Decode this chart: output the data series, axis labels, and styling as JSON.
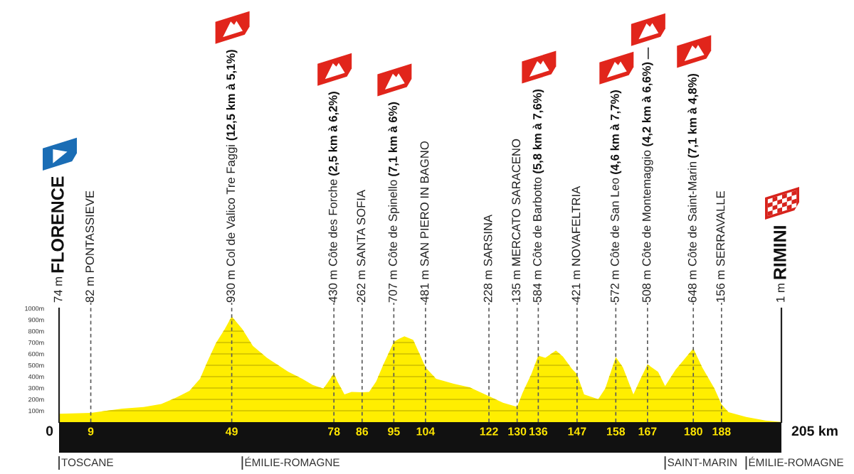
{
  "chart_data": {
    "type": "area",
    "color": "#ffee00",
    "x": [
      0,
      9,
      18,
      24,
      29,
      33,
      37,
      40,
      42,
      44.5,
      47,
      49,
      52,
      55,
      59,
      62,
      65,
      69,
      72,
      75,
      76,
      78,
      79,
      81,
      83,
      86,
      88,
      90,
      92,
      95,
      96.5,
      98,
      100.5,
      102.5,
      104,
      107,
      112,
      116.5,
      122,
      126,
      130,
      131.5,
      134,
      136,
      138,
      141,
      143,
      145.5,
      147,
      149,
      153,
      155,
      158,
      160,
      163,
      165,
      167,
      170,
      172,
      175,
      180,
      182.5,
      186,
      188,
      190,
      195,
      200.5,
      205
    ],
    "values": [
      74,
      82,
      119,
      133,
      160,
      212,
      275,
      381,
      525,
      694,
      817,
      930,
      818,
      670,
      566,
      504,
      443,
      381,
      327,
      296,
      338,
      430,
      358,
      244,
      265,
      262,
      265,
      358,
      504,
      707,
      733,
      754,
      723,
      588,
      481,
      381,
      338,
      306,
      228,
      171,
      135,
      254,
      421,
      584,
      566,
      629,
      577,
      470,
      421,
      244,
      202,
      296,
      572,
      483,
      244,
      379,
      508,
      442,
      317,
      462,
      648,
      483,
      296,
      156,
      88,
      46,
      14,
      1
    ],
    "xlim": [
      0,
      205
    ],
    "xticks": [
      9,
      49,
      78,
      86,
      95,
      104,
      122,
      130,
      136,
      147,
      158,
      167,
      180,
      188
    ],
    "ylim": [
      0,
      1000
    ],
    "yticks": [
      {
        "value": 100,
        "label": "100m"
      },
      {
        "value": 200,
        "label": "200m"
      },
      {
        "value": 300,
        "label": "300m"
      },
      {
        "value": 400,
        "label": "400m"
      },
      {
        "value": 500,
        "label": "500m"
      },
      {
        "value": 600,
        "label": "600m"
      },
      {
        "value": 700,
        "label": "700m"
      },
      {
        "value": 800,
        "label": "800m"
      },
      {
        "value": 900,
        "label": "900m"
      },
      {
        "value": 1000,
        "label": "1000m"
      }
    ],
    "grid": "y",
    "ref_lines": [
      {
        "axis": "x",
        "value": 9,
        "label": "82 m PONTASSIEVE",
        "line_style": "dashed",
        "color": "#5a5a5a"
      },
      {
        "axis": "x",
        "value": 49,
        "label": "930 m Col de Valico Tre Faggi (12,5 km à 5,1%)",
        "line_style": "dashed",
        "color": "#5a5a5a"
      },
      {
        "axis": "x",
        "value": 78,
        "label": "430 m Côte des Forche (2,5 km à 6,2%)",
        "line_style": "dashed",
        "color": "#5a5a5a"
      },
      {
        "axis": "x",
        "value": 86,
        "label": "262 m SANTA SOFIA",
        "line_style": "dashed",
        "color": "#5a5a5a"
      },
      {
        "axis": "x",
        "value": 95,
        "label": "707 m Côte de Spinello (7,1 km à 6%)",
        "line_style": "dashed",
        "color": "#5a5a5a"
      },
      {
        "axis": "x",
        "value": 104,
        "label": "481 m SAN PIERO IN BAGNO",
        "line_style": "dashed",
        "color": "#5a5a5a"
      },
      {
        "axis": "x",
        "value": 122,
        "label": "228 m SARSINA",
        "line_style": "dashed",
        "color": "#5a5a5a"
      },
      {
        "axis": "x",
        "value": 130,
        "label": "135 m MERCATO SARACENO",
        "line_style": "dashed",
        "color": "#5a5a5a"
      },
      {
        "axis": "x",
        "value": 136,
        "label": "584 m Côte de Barbotto (5,8 km à 7,6%)",
        "line_style": "dashed",
        "color": "#5a5a5a"
      },
      {
        "axis": "x",
        "value": 147,
        "label": "421 m NOVAFELTRIA",
        "line_style": "dashed",
        "color": "#5a5a5a"
      },
      {
        "axis": "x",
        "value": 158,
        "label": "572 m Côte de San Leo (4,6 km à 7,7%)",
        "line_style": "dashed",
        "color": "#5a5a5a"
      },
      {
        "axis": "x",
        "value": 167,
        "label": "508 m Côte de Montemaggio (4,2 km à 6,6%)",
        "line_style": "dashed",
        "color": "#5a5a5a"
      },
      {
        "axis": "x",
        "value": 180,
        "label": "648 m Côte de Saint-Marin (7,1 km à 4,8%)",
        "line_style": "dashed",
        "color": "#5a5a5a"
      },
      {
        "axis": "x",
        "value": 188,
        "label": "156 m SERRAVALLE",
        "line_style": "dashed",
        "color": "#5a5a5a"
      },
      {
        "axis": "x",
        "value": 0,
        "label": "TOSCANE",
        "line_style": "solid",
        "color": "#333333"
      },
      {
        "axis": "x",
        "value": 52,
        "label": "ÉMILIE-ROMAGNE",
        "line_style": "solid",
        "color": "#333333"
      },
      {
        "axis": "x",
        "value": 172,
        "label": "SAINT-MARIN",
        "line_style": "solid",
        "color": "#333333"
      },
      {
        "axis": "x",
        "value": 195,
        "label": "ÉMILIE-ROMAGNE",
        "line_style": "solid",
        "color": "#333333"
      }
    ],
    "annotations": [
      "74 m FLORENCE",
      "1 m RIMINI",
      {
        "text": "0",
        "x": 0,
        "y": 0
      },
      {
        "text": "205 km",
        "x": 205,
        "y": 0
      }
    ]
  }
}
